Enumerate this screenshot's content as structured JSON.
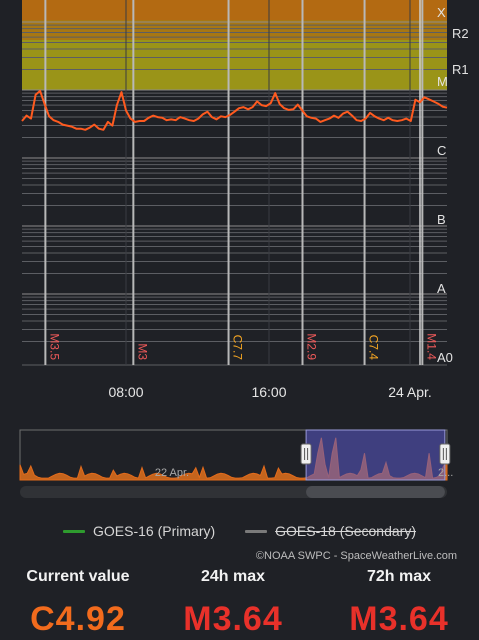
{
  "chart_data": {
    "type": "line",
    "title": "",
    "flare_classes": [
      "X",
      "R2",
      "R1",
      "M",
      "C",
      "B",
      "A",
      "A0"
    ],
    "x_ticks": [
      "08:00",
      "16:00",
      "24 Apr."
    ],
    "series": [
      {
        "name": "GOES-16 (Primary)",
        "color": "#ff5a1f",
        "values": [
          3.5,
          4.2,
          3.8,
          8.5,
          9.7,
          6.2,
          4.1,
          3.6,
          3.4,
          3.1,
          3.0,
          2.9,
          2.7,
          2.7,
          2.6,
          2.8,
          3.1,
          2.7,
          2.6,
          3.4,
          3.0,
          6.0,
          9.3,
          5.0,
          3.8,
          3.4,
          3.5,
          3.5,
          3.9,
          4.2,
          4.0,
          3.9,
          3.6,
          3.7,
          3.6,
          4.0,
          3.8,
          3.6,
          3.5,
          3.8,
          4.4,
          4.8,
          4.0,
          3.7,
          4.1,
          4.0,
          4.3,
          4.8,
          5.4,
          5.6,
          5.2,
          5.6,
          6.8,
          6.0,
          5.8,
          6.4,
          9.0,
          6.2,
          5.4,
          5.1,
          5.2,
          6.1,
          5.0,
          4.1,
          3.9,
          3.8,
          3.4,
          3.6,
          3.8,
          4.2,
          3.9,
          4.5,
          4.8,
          4.2,
          3.6,
          3.5,
          3.8,
          4.6,
          4.1,
          3.8,
          3.6,
          3.9,
          3.6,
          3.5,
          3.6,
          3.8,
          3.5,
          7.2,
          6.6,
          7.8,
          7.3,
          6.8,
          6.3,
          5.7,
          5.5
        ]
      },
      {
        "name": "GOES-18 (Secondary)",
        "color": "#7a7a7a",
        "values": []
      }
    ],
    "flare_markers": [
      {
        "label": "M3.5",
        "color": "#ef5a5a",
        "position": 0.055
      },
      {
        "label": "M3",
        "color": "#ef5a5a",
        "position": 0.262
      },
      {
        "label": "C7.7",
        "color": "#f5a623",
        "position": 0.486
      },
      {
        "label": "M2.9",
        "color": "#ef5a5a",
        "position": 0.66
      },
      {
        "label": "C7.4",
        "color": "#f5a623",
        "position": 0.806
      },
      {
        "label": "M1.4",
        "color": "#ef5a5a",
        "position": 0.942
      }
    ],
    "navigator": {
      "label": "22 Apr.",
      "right_label": "2...",
      "selection_start": 0.67,
      "selection_end": 0.995
    },
    "grid": true,
    "legend_position": "bottom"
  },
  "legend": {
    "primary_label": "GOES-16 (Primary)",
    "primary_color": "#2e9b2e",
    "secondary_label": "GOES-18 (Secondary)",
    "secondary_color": "#7a7a7a"
  },
  "credit": "©NOAA SWPC - SpaceWeatherLive.com",
  "stats": {
    "current_label": "Current value",
    "current_value": "C4.92",
    "current_color": "#f26b1d",
    "max24_label": "24h max",
    "max24_value": "M3.64",
    "max24_color": "#e8312a",
    "max72_label": "72h max",
    "max72_value": "M3.64",
    "max72_color": "#e8312a"
  }
}
